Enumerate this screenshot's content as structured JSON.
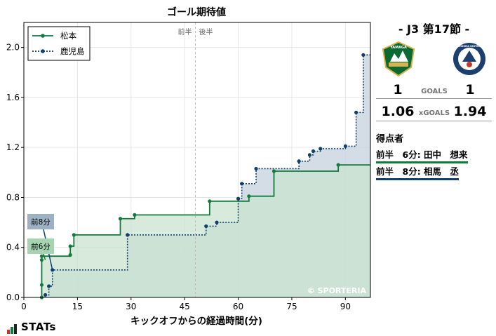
{
  "chart_data": {
    "type": "step-area",
    "title": "ゴール期待値",
    "xlabel": "キックオフからの経過時間(分)",
    "ylabel": "",
    "xlim": [
      0,
      97
    ],
    "ylim": [
      0,
      2.2
    ],
    "xticks": [
      0,
      15,
      30,
      45,
      60,
      75,
      90
    ],
    "yticks": [
      0.0,
      0.4,
      0.8,
      1.2,
      1.6,
      2.0
    ],
    "grid": true,
    "legend_position": "top-left",
    "half_divider_minute": 48,
    "half_labels": [
      "前半",
      "後半"
    ],
    "watermark": "© SPORTERIA",
    "series": [
      {
        "name": "松本",
        "color": "#117a3c",
        "fill": "#c9e3cf",
        "line_style": "solid",
        "points": [
          [
            5,
            0.0
          ],
          [
            5,
            0.1
          ],
          [
            5,
            0.3
          ],
          [
            5,
            0.33
          ],
          [
            13,
            0.34
          ],
          [
            13,
            0.41
          ],
          [
            14,
            0.5
          ],
          [
            27,
            0.63
          ],
          [
            31,
            0.66
          ],
          [
            52,
            0.77
          ],
          [
            63,
            0.81
          ],
          [
            70,
            1.01
          ],
          [
            88,
            1.06
          ],
          [
            97,
            1.06
          ]
        ]
      },
      {
        "name": "鹿児島",
        "color": "#0f3f6e",
        "fill": "#c6d2de",
        "line_style": "dotted",
        "points": [
          [
            6,
            0.02
          ],
          [
            7,
            0.09
          ],
          [
            8,
            0.22
          ],
          [
            29,
            0.5
          ],
          [
            51,
            0.57
          ],
          [
            54,
            0.6
          ],
          [
            60,
            0.79
          ],
          [
            61,
            0.91
          ],
          [
            65,
            1.03
          ],
          [
            77,
            1.09
          ],
          [
            80,
            1.14
          ],
          [
            81,
            1.17
          ],
          [
            83,
            1.19
          ],
          [
            90,
            1.21
          ],
          [
            93,
            1.48
          ],
          [
            95,
            1.94
          ],
          [
            97,
            1.94
          ]
        ]
      }
    ],
    "annotations": [
      {
        "label": "前8分",
        "minute": 8,
        "value": 0.22,
        "team": "鹿児島",
        "color": "#0f3f6e",
        "box_color": "#9eb1c3"
      },
      {
        "label": "前6分",
        "minute": 6,
        "value": 0.3,
        "team": "松本",
        "color": "#117a3c",
        "box_color": "#a6d3b1"
      }
    ]
  },
  "match": {
    "round_label": "-  J3 第17節  -",
    "home_score": "1",
    "away_score": "1",
    "goals_label": "GOALS",
    "home_xg": "1.06",
    "away_xg": "1.94",
    "xg_label": "xGOALS",
    "home_crest": "matsumoto-crest",
    "away_crest": "kagoshima-crest",
    "home_crest_text": "YAMAGA",
    "away_crest_text": "KAGOSHIMA UNITED F.C."
  },
  "scorers": {
    "title": "得点者",
    "items": [
      {
        "text": "前半　6分: 田中　想来",
        "team_color": "#117a3c"
      },
      {
        "text": "前半　8分: 相馬　丞",
        "team_color": "#0f3f6e"
      }
    ]
  },
  "brand": {
    "logo_text": "STATs"
  }
}
